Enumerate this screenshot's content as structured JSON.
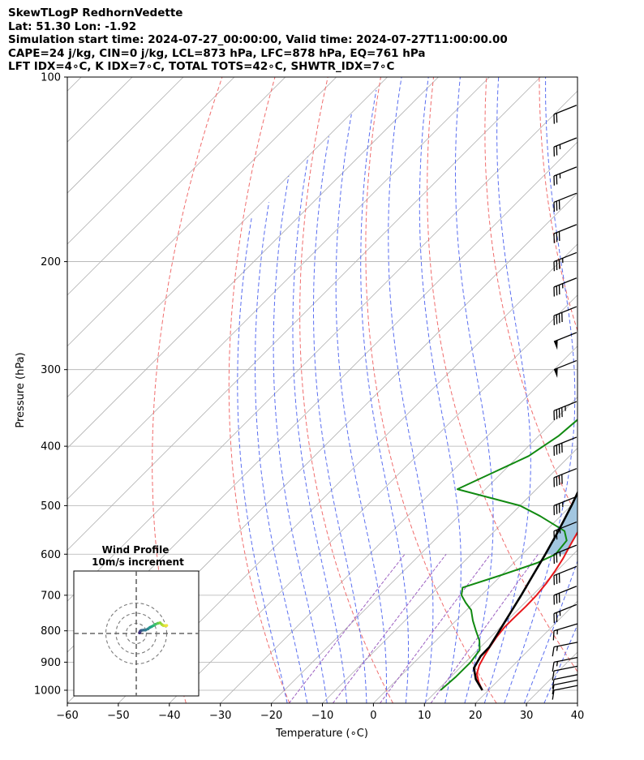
{
  "header": {
    "line1": "SkewTLogP RedhornVedette",
    "line2": "Lat: 51.30   Lon: -1.92",
    "line3": "Simulation start time: 2024-07-27_00:00:00, Valid time: 2024-07-27T11:00:00.00",
    "line4": "CAPE=24 j/kg, CIN=0 j/kg, LCL=873 hPa, LFC=878 hPa, EQ=761 hPa",
    "line5": "LFT IDX=4∘C, K IDX=7∘C, TOTAL TOTS=42∘C, SHWTR_IDX=7∘C"
  },
  "chart_data": [
    {
      "type": "line",
      "xlabel": "Temperature (∘C)",
      "ylabel": "Pressure (hPa)",
      "xlim": [
        -60,
        40
      ],
      "ylim": [
        1050,
        100
      ],
      "y_scale": "log",
      "xticks": [
        "−60",
        "−50",
        "−40",
        "−30",
        "−20",
        "−10",
        "0",
        "10",
        "20",
        "30",
        "40"
      ],
      "xtick_values": [
        -60,
        -50,
        -40,
        -30,
        -20,
        -10,
        0,
        10,
        20,
        30,
        40
      ],
      "yticks": [
        "1000",
        "900",
        "800",
        "700",
        "600",
        "500",
        "400",
        "300",
        "200",
        "100"
      ],
      "ytick_values": [
        1000,
        900,
        800,
        700,
        600,
        500,
        400,
        300,
        200,
        100
      ],
      "grid": true,
      "colors": {
        "temperature": "#e8171b",
        "dewpoint": "#118a11",
        "parcel": "#000000",
        "cape_fill": "#a2c6e0",
        "dry_adiabat": "#f06d6d",
        "moist_adiabat": "#5a6ef0",
        "mixing_ratio": "#9b5fc0",
        "isotherm": "#b0b0b0"
      },
      "series": [
        {
          "key": "temperature",
          "points": [
            [
              1000,
              18.8
            ],
            [
              970,
              16.5
            ],
            [
              940,
              14.5
            ],
            [
              910,
              13.3
            ],
            [
              880,
              12.5
            ],
            [
              850,
              11.8
            ],
            [
              820,
              11.2
            ],
            [
              790,
              10.8
            ],
            [
              760,
              10.8
            ],
            [
              730,
              10.9
            ],
            [
              700,
              10.8
            ],
            [
              670,
              10.4
            ],
            [
              640,
              9.7
            ],
            [
              610,
              8.8
            ],
            [
              580,
              7.6
            ],
            [
              550,
              6.4
            ],
            [
              520,
              5.3
            ],
            [
              500,
              4.8
            ],
            [
              470,
              4.6
            ],
            [
              440,
              4.5
            ],
            [
              410,
              4.2
            ],
            [
              380,
              3.3
            ],
            [
              350,
              2.0
            ],
            [
              320,
              0.3
            ],
            [
              300,
              -0.7
            ],
            [
              280,
              -2.3
            ],
            [
              260,
              -4.2
            ],
            [
              245,
              -5.6
            ],
            [
              230,
              -6.5
            ],
            [
              215,
              -7.6
            ],
            [
              200,
              -8.8
            ],
            [
              185,
              -10.6
            ],
            [
              170,
              -12.5
            ],
            [
              155,
              -15.0
            ],
            [
              140,
              -18.5
            ],
            [
              125,
              -22.3
            ],
            [
              110,
              -26.8
            ],
            [
              100,
              -30.1
            ]
          ]
        },
        {
          "key": "dewpoint",
          "points": [
            [
              1000,
              10.6
            ],
            [
              950,
              11.0
            ],
            [
              900,
              11.0
            ],
            [
              860,
              10.4
            ],
            [
              830,
              8.5
            ],
            [
              800,
              5.9
            ],
            [
              770,
              3.3
            ],
            [
              740,
              0.9
            ],
            [
              720,
              -1.6
            ],
            [
              700,
              -3.9
            ],
            [
              680,
              -5.2
            ],
            [
              650,
              -0.2
            ],
            [
              620,
              4.6
            ],
            [
              600,
              6.5
            ],
            [
              570,
              6.0
            ],
            [
              550,
              3.7
            ],
            [
              520,
              -4.0
            ],
            [
              500,
              -10.0
            ],
            [
              470,
              -25.5
            ],
            [
              440,
              -21.5
            ],
            [
              415,
              -18.0
            ],
            [
              385,
              -16.1
            ],
            [
              355,
              -15.4
            ],
            [
              325,
              -15.0
            ],
            [
              300,
              -14.7
            ],
            [
              280,
              -13.7
            ],
            [
              265,
              -13.1
            ],
            [
              255,
              -13.5
            ],
            [
              240,
              -15.6
            ],
            [
              225,
              -17.2
            ],
            [
              210,
              -17.2
            ],
            [
              200,
              -16.0
            ],
            [
              185,
              -17.7
            ],
            [
              172,
              -18.6
            ],
            [
              160,
              -17.7
            ],
            [
              150,
              -17.0
            ],
            [
              140,
              -17.0
            ],
            [
              130,
              -16.3
            ],
            [
              120,
              -15.0
            ],
            [
              110,
              -13.8
            ],
            [
              100,
              -12.9
            ]
          ]
        },
        {
          "key": "parcel",
          "points": [
            [
              1000,
              18.8
            ],
            [
              960,
              15.4
            ],
            [
              920,
              12.8
            ],
            [
              880,
              11.8
            ],
            [
              850,
              11.7
            ],
            [
              800,
              10.5
            ],
            [
              750,
              9.2
            ],
            [
              700,
              7.8
            ],
            [
              650,
              6.2
            ],
            [
              600,
              4.5
            ],
            [
              550,
              2.5
            ],
            [
              500,
              0.1
            ],
            [
              450,
              -2.8
            ],
            [
              400,
              -6.3
            ],
            [
              350,
              -10.4
            ],
            [
              300,
              -15.4
            ],
            [
              250,
              -21.4
            ],
            [
              200,
              -28.3
            ],
            [
              150,
              -36.2
            ],
            [
              120,
              -40.9
            ],
            [
              100,
              -44.4
            ]
          ]
        }
      ],
      "wind_barbs": [
        {
          "p": 1000,
          "u": 10,
          "v": 2,
          "kt": 10
        },
        {
          "p": 980,
          "u": 10,
          "v": 2,
          "kt": 10
        },
        {
          "p": 960,
          "u": 10,
          "v": 2,
          "kt": 10
        },
        {
          "p": 930,
          "u": 10,
          "v": 2,
          "kt": 10
        },
        {
          "p": 900,
          "u": 10,
          "v": 2,
          "kt": 15
        },
        {
          "p": 850,
          "u": 10,
          "v": 2,
          "kt": 15
        },
        {
          "p": 800,
          "u": 10,
          "v": 3,
          "kt": 15
        },
        {
          "p": 750,
          "u": 10,
          "v": 4,
          "kt": 25
        },
        {
          "p": 700,
          "u": 10,
          "v": 4,
          "kt": 30
        },
        {
          "p": 650,
          "u": 10,
          "v": 4,
          "kt": 30
        },
        {
          "p": 600,
          "u": 10,
          "v": 4,
          "kt": 25
        },
        {
          "p": 550,
          "u": 10,
          "v": 4,
          "kt": 25
        },
        {
          "p": 500,
          "u": 10,
          "v": 4,
          "kt": 35
        },
        {
          "p": 450,
          "u": 10,
          "v": 4,
          "kt": 40
        },
        {
          "p": 400,
          "u": 10,
          "v": 4,
          "kt": 40
        },
        {
          "p": 350,
          "u": 10,
          "v": 4,
          "kt": 45
        },
        {
          "p": 300,
          "u": 10,
          "v": 4,
          "kt": 50
        },
        {
          "p": 270,
          "u": 10,
          "v": 4,
          "kt": 50
        },
        {
          "p": 245,
          "u": 10,
          "v": 4,
          "kt": 40
        },
        {
          "p": 220,
          "u": 10,
          "v": 4,
          "kt": 35
        },
        {
          "p": 200,
          "u": 10,
          "v": 4,
          "kt": 35
        },
        {
          "p": 180,
          "u": 10,
          "v": 4,
          "kt": 30
        },
        {
          "p": 160,
          "u": 10,
          "v": 4,
          "kt": 30
        },
        {
          "p": 145,
          "u": 10,
          "v": 4,
          "kt": 25
        },
        {
          "p": 130,
          "u": 10,
          "v": 4,
          "kt": 25
        },
        {
          "p": 115,
          "u": 10,
          "v": 4,
          "kt": 20
        }
      ]
    },
    {
      "type": "scatter",
      "title": "Wind Profile",
      "subtitle": "10m/s increment",
      "ring_radii": [
        10,
        20,
        30
      ],
      "colors": {
        "rings": "#7a7a7a"
      },
      "points": [
        [
          3.2,
          0.6,
          "#3e2a73"
        ],
        [
          3.5,
          1.2,
          "#3e2a73"
        ],
        [
          3.8,
          2.0,
          "#433b80"
        ],
        [
          4.5,
          2.8,
          "#3f4c88"
        ],
        [
          5.5,
          3.1,
          "#3b5c8b"
        ],
        [
          7.0,
          3.3,
          "#376c8c"
        ],
        [
          9.0,
          3.3,
          "#32798d"
        ],
        [
          11.5,
          4.5,
          "#2d888e"
        ],
        [
          13.5,
          6.0,
          "#28978c"
        ],
        [
          15.2,
          6.8,
          "#22a784"
        ],
        [
          17.0,
          7.8,
          "#2cb576"
        ],
        [
          18.8,
          9.0,
          "#3fc26a"
        ],
        [
          21.2,
          10.0,
          "#63cc52"
        ],
        [
          23.5,
          10.5,
          "#8ad43b"
        ],
        [
          25.4,
          8.7,
          "#a8da31"
        ],
        [
          26.8,
          7.8,
          "#c2df2f"
        ],
        [
          28.0,
          7.6,
          "#d6e133"
        ],
        [
          29.0,
          7.7,
          "#e3e33a"
        ],
        [
          30.0,
          7.9,
          "#eee53f"
        ]
      ]
    }
  ]
}
